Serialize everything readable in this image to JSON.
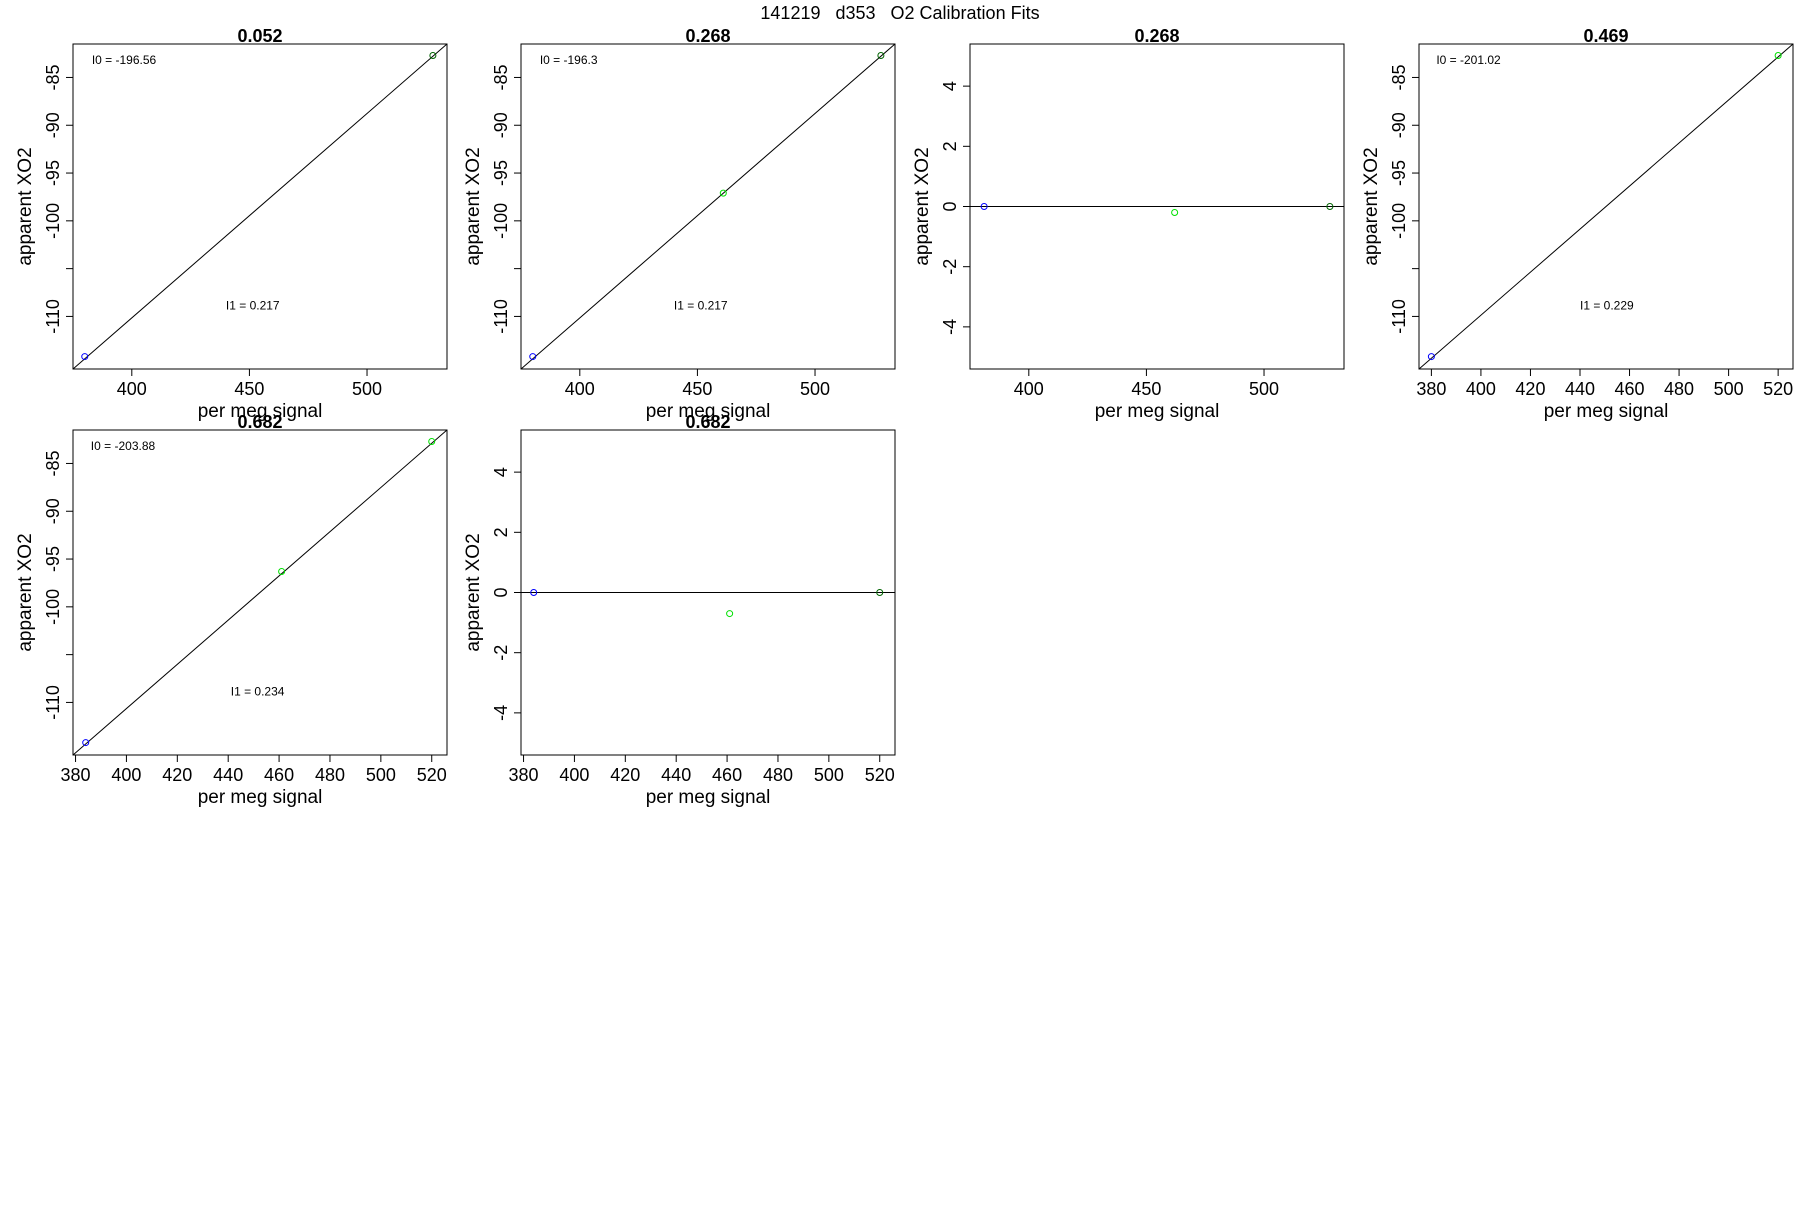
{
  "figure": {
    "title": "141219   d353   O2 Calibration Fits"
  },
  "colors": {
    "blue": "#0000ff",
    "green": "#00e000",
    "darkgreen": "#006400",
    "frame": "#000000"
  },
  "chart_data": [
    {
      "type": "scatter",
      "title": "0.052",
      "xlabel": "per meg signal",
      "ylabel": "apparent XO2",
      "xlim": [
        375,
        534
      ],
      "ylim": [
        -115.5,
        -81.5
      ],
      "xticks": [
        400,
        450,
        500
      ],
      "yticks": [
        -85,
        -90,
        -95,
        -100,
        -105,
        -110
      ],
      "ytick_labels": [
        "-85",
        "-90",
        "-95",
        "-100",
        "",
        "-110"
      ],
      "fit_line": [
        [
          375,
          -115.5
        ],
        [
          534,
          -81.5
        ]
      ],
      "points": [
        {
          "x": 380,
          "y": -114.2,
          "color": "blue"
        },
        {
          "x": 528,
          "y": -82.7,
          "color": "darkgreen"
        }
      ],
      "annotations": [
        {
          "text": "I0 =  -196.56",
          "x": 383,
          "y": -83.6
        },
        {
          "text": "I1 =  0.217",
          "x": 440,
          "y": -109.3
        }
      ]
    },
    {
      "type": "scatter",
      "title": "0.268",
      "xlabel": "per meg signal",
      "ylabel": "apparent XO2",
      "xlim": [
        375,
        534
      ],
      "ylim": [
        -115.5,
        -81.5
      ],
      "xticks": [
        400,
        450,
        500
      ],
      "yticks": [
        -85,
        -90,
        -95,
        -100,
        -105,
        -110
      ],
      "ytick_labels": [
        "-85",
        "-90",
        "-95",
        "-100",
        "",
        "-110"
      ],
      "fit_line": [
        [
          375,
          -115.5
        ],
        [
          534,
          -81.5
        ]
      ],
      "points": [
        {
          "x": 380,
          "y": -114.2,
          "color": "blue"
        },
        {
          "x": 461,
          "y": -97.1,
          "color": "green"
        },
        {
          "x": 528,
          "y": -82.7,
          "color": "darkgreen"
        }
      ],
      "annotations": [
        {
          "text": "I0 =  -196.3",
          "x": 383,
          "y": -83.6
        },
        {
          "text": "I1 =  0.217",
          "x": 440,
          "y": -109.3
        }
      ]
    },
    {
      "type": "scatter",
      "title": "0.268",
      "xlabel": "per meg signal",
      "ylabel": "apparent XO2",
      "xlim": [
        375,
        534
      ],
      "ylim": [
        -5.4,
        5.4
      ],
      "xticks": [
        400,
        450,
        500
      ],
      "yticks": [
        4,
        2,
        0,
        -2,
        -4
      ],
      "ytick_labels": [
        "4",
        "2",
        "0",
        "-2",
        "-4"
      ],
      "fit_line": [
        [
          375,
          0
        ],
        [
          534,
          0
        ]
      ],
      "points": [
        {
          "x": 381,
          "y": 0.0,
          "color": "blue"
        },
        {
          "x": 462,
          "y": -0.2,
          "color": "green"
        },
        {
          "x": 528,
          "y": 0.0,
          "color": "darkgreen"
        }
      ],
      "annotations": []
    },
    {
      "type": "scatter",
      "title": "0.469",
      "xlabel": "per meg signal",
      "ylabel": "apparent XO2",
      "xlim": [
        375,
        526
      ],
      "ylim": [
        -115.5,
        -81.5
      ],
      "xticks": [
        380,
        400,
        420,
        440,
        460,
        480,
        500,
        520
      ],
      "yticks": [
        -85,
        -90,
        -95,
        -100,
        -105,
        -110
      ],
      "ytick_labels": [
        "-85",
        "-90",
        "-95",
        "-100",
        "",
        "-110"
      ],
      "fit_line": [
        [
          375,
          -115.5
        ],
        [
          526,
          -81.5
        ]
      ],
      "points": [
        {
          "x": 380,
          "y": -114.2,
          "color": "blue"
        },
        {
          "x": 520,
          "y": -82.7,
          "color": "green"
        }
      ],
      "annotations": [
        {
          "text": "I0 =  -201.02",
          "x": 382,
          "y": -83.6
        },
        {
          "text": "I1 =  0.229",
          "x": 440,
          "y": -109.3
        }
      ]
    },
    {
      "type": "scatter",
      "title": "0.682",
      "xlabel": "per meg signal",
      "ylabel": "apparent XO2",
      "xlim": [
        379,
        526
      ],
      "ylim": [
        -115.5,
        -81.5
      ],
      "xticks": [
        380,
        400,
        420,
        440,
        460,
        480,
        500,
        520
      ],
      "yticks": [
        -85,
        -90,
        -95,
        -100,
        -105,
        -110
      ],
      "ytick_labels": [
        "-85",
        "-90",
        "-95",
        "-100",
        "",
        "-110"
      ],
      "fit_line": [
        [
          379,
          -115.5
        ],
        [
          526,
          -81.5
        ]
      ],
      "points": [
        {
          "x": 384,
          "y": -114.2,
          "color": "blue"
        },
        {
          "x": 461,
          "y": -96.3,
          "color": "green"
        },
        {
          "x": 520,
          "y": -82.7,
          "color": "green"
        }
      ],
      "annotations": [
        {
          "text": "I0 =  -203.88",
          "x": 386,
          "y": -83.6
        },
        {
          "text": "I1 =  0.234",
          "x": 441,
          "y": -109.3
        }
      ]
    },
    {
      "type": "scatter",
      "title": "0.682",
      "xlabel": "per meg signal",
      "ylabel": "apparent XO2",
      "xlim": [
        379,
        526
      ],
      "ylim": [
        -5.4,
        5.4
      ],
      "xticks": [
        380,
        400,
        420,
        440,
        460,
        480,
        500,
        520
      ],
      "yticks": [
        4,
        2,
        0,
        -2,
        -4
      ],
      "ytick_labels": [
        "4",
        "2",
        "0",
        "-2",
        "-4"
      ],
      "fit_line": [
        [
          379,
          0
        ],
        [
          526,
          0
        ]
      ],
      "points": [
        {
          "x": 384,
          "y": 0.0,
          "color": "blue"
        },
        {
          "x": 461,
          "y": -0.7,
          "color": "green"
        },
        {
          "x": 520,
          "y": 0.0,
          "color": "darkgreen"
        }
      ],
      "annotations": []
    }
  ]
}
